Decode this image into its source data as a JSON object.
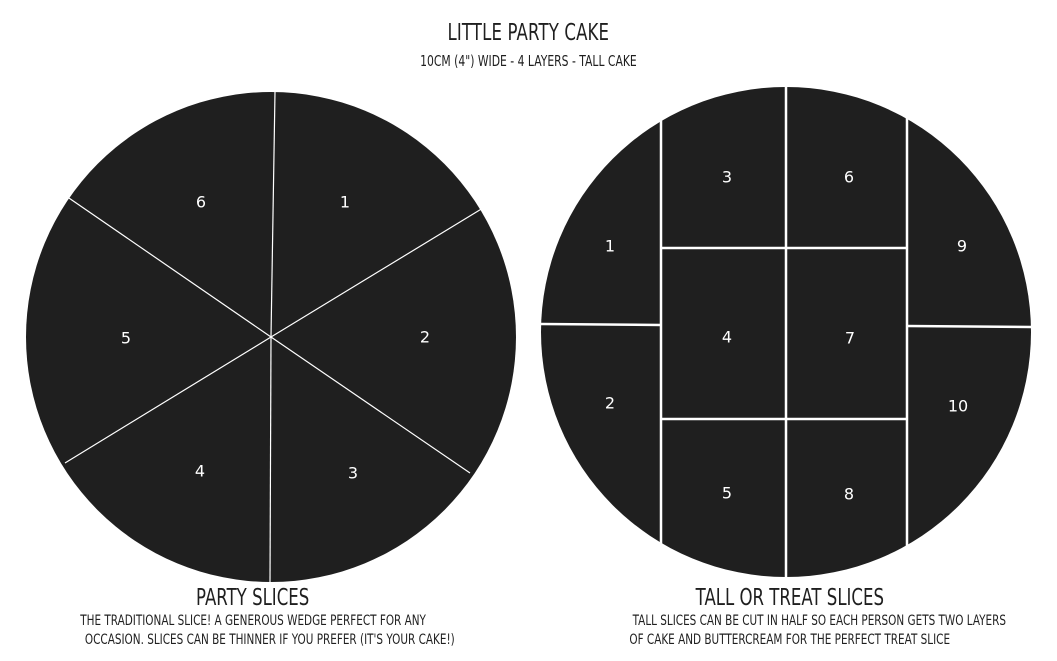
{
  "header": {
    "title": "LITTLE PARTY CAKE",
    "subtitle": "10CM (4\") WIDE -  4 LAYERS - TALL CAKE"
  },
  "party": {
    "title": "PARTY SLICES",
    "description": [
      "THE TRADITIONAL SLICE! A GENEROUS WEDGE PERFECT FOR ANY",
      "OCCASION. SLICES CAN BE THINNER IF YOU PREFER (IT'S YOUR CAKE!)"
    ],
    "slices": [
      "1",
      "2",
      "3",
      "4",
      "5",
      "6"
    ]
  },
  "tall": {
    "title": "TALL OR TREAT SLICES",
    "description": [
      "TALL SLICES CAN BE CUT IN HALF SO EACH PERSON GETS TWO LAYERS",
      "OF CAKE AND BUTTERCREAM FOR THE PERFECT TREAT SLICE"
    ],
    "slices": [
      "1",
      "2",
      "3",
      "4",
      "5",
      "6",
      "7",
      "8",
      "9",
      "10"
    ]
  },
  "colors": {
    "cake": "#1f1f1f",
    "cut_line": "#ffffff",
    "text": "#1f1f1f"
  }
}
